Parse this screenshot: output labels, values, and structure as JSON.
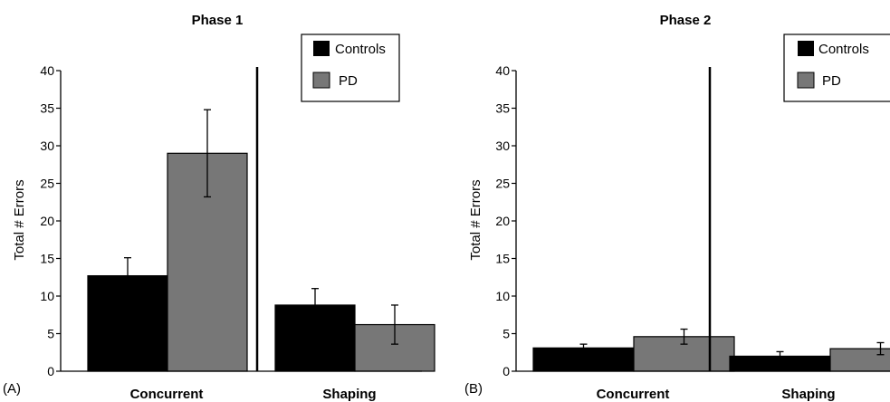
{
  "chart_data": [
    {
      "type": "bar",
      "panel_label": "(A)",
      "title": "Phase 1",
      "ylabel": "Total # Errors",
      "xlabel": "",
      "ylim": [
        0,
        40
      ],
      "yticks": [
        0,
        5,
        10,
        15,
        20,
        25,
        30,
        35,
        40
      ],
      "categories": [
        "Concurrent",
        "Shaping"
      ],
      "series": [
        {
          "name": "Controls",
          "color": "#000000",
          "values": [
            12.7,
            8.8
          ],
          "errors": [
            2.4,
            2.2
          ]
        },
        {
          "name": "PD",
          "color": "#777777",
          "values": [
            29.0,
            6.2
          ],
          "errors": [
            5.8,
            2.6
          ]
        }
      ],
      "legend": "top-right",
      "grid": false
    },
    {
      "type": "bar",
      "panel_label": "(B)",
      "title": "Phase 2",
      "ylabel": "Total # Errors",
      "xlabel": "",
      "ylim": [
        0,
        40
      ],
      "yticks": [
        0,
        5,
        10,
        15,
        20,
        25,
        30,
        35,
        40
      ],
      "categories": [
        "Concurrent",
        "Shaping"
      ],
      "series": [
        {
          "name": "Controls",
          "color": "#000000",
          "values": [
            3.1,
            2.0
          ],
          "errors": [
            0.5,
            0.6
          ]
        },
        {
          "name": "PD",
          "color": "#777777",
          "values": [
            4.6,
            3.0
          ],
          "errors": [
            1.0,
            0.8
          ]
        }
      ],
      "legend": "top-right",
      "grid": false
    }
  ]
}
